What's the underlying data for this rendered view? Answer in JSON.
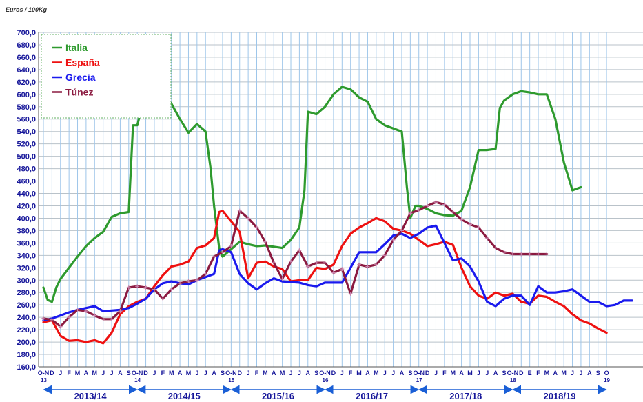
{
  "unit_label": "Euros / 100Kg",
  "chart_data": {
    "type": "line",
    "title": "",
    "ylabel": "Euros / 100Kg",
    "ylim": [
      160,
      700
    ],
    "grid": true,
    "legend_position": "top-left",
    "yticks": [
      "160,0",
      "180,0",
      "200,0",
      "220,0",
      "240,0",
      "260,0",
      "280,0",
      "300,0",
      "320,0",
      "340,0",
      "360,0",
      "380,0",
      "400,0",
      "420,0",
      "440,0",
      "460,0",
      "480,0",
      "500,0",
      "520,0",
      "540,0",
      "560,0",
      "580,0",
      "600,0",
      "620,0",
      "640,0",
      "660,0",
      "680,0",
      "700,0"
    ],
    "month_labels": [
      "O-N",
      "D",
      "J",
      "F",
      "M",
      "A",
      "M",
      "J",
      "J",
      "A",
      "S",
      "O-N",
      "D",
      "J",
      "F",
      "M",
      "A",
      "M",
      "J",
      "J",
      "A",
      "S",
      "O-N",
      "D",
      "J",
      "F",
      "M",
      "A",
      "M",
      "J",
      "J",
      "A",
      "S",
      "O-N",
      "D",
      "J",
      "F",
      "M",
      "A",
      "M",
      "J",
      "J",
      "A",
      "S",
      "O-N",
      "D",
      "J",
      "F",
      "M",
      "A",
      "M",
      "J",
      "J",
      "A",
      "S",
      "O-N",
      "D",
      "E",
      "F",
      "M",
      "A",
      "M",
      "J",
      "J",
      "A",
      "S",
      "O"
    ],
    "year_markers": [
      {
        "label": "13",
        "index": 0
      },
      {
        "label": "14",
        "index": 11
      },
      {
        "label": "15",
        "index": 22
      },
      {
        "label": "16",
        "index": 33
      },
      {
        "label": "17",
        "index": 44
      },
      {
        "label": "18",
        "index": 55
      },
      {
        "label": "19",
        "index": 66
      }
    ],
    "seasons": [
      {
        "label": "2013/14",
        "start": 0,
        "end": 11
      },
      {
        "label": "2014/15",
        "start": 11,
        "end": 22
      },
      {
        "label": "2015/16",
        "start": 22,
        "end": 33
      },
      {
        "label": "2016/17",
        "start": 33,
        "end": 44
      },
      {
        "label": "2017/18",
        "start": 44,
        "end": 55
      },
      {
        "label": "2018/19",
        "start": 55,
        "end": 66
      }
    ],
    "series": [
      {
        "name": "Italia",
        "color": "#2e9a2e",
        "markers": false,
        "points": [
          [
            0,
            288
          ],
          [
            0.5,
            268
          ],
          [
            1,
            265
          ],
          [
            1.5,
            288
          ],
          [
            2,
            302
          ],
          [
            3,
            320
          ],
          [
            4,
            338
          ],
          [
            5,
            355
          ],
          [
            6,
            368
          ],
          [
            7,
            378
          ],
          [
            8,
            402
          ],
          [
            9,
            408
          ],
          [
            10,
            410
          ],
          [
            10.5,
            550
          ],
          [
            11,
            550
          ],
          [
            11.5,
            578
          ],
          [
            12,
            598
          ],
          [
            13,
            603
          ],
          [
            14,
            598
          ],
          [
            15,
            585
          ],
          [
            16,
            560
          ],
          [
            17,
            538
          ],
          [
            18,
            552
          ],
          [
            19,
            540
          ],
          [
            19.6,
            480
          ],
          [
            20,
            420
          ],
          [
            20.6,
            352
          ],
          [
            21,
            338
          ],
          [
            22,
            350
          ],
          [
            23,
            362
          ],
          [
            24,
            358
          ],
          [
            25,
            355
          ],
          [
            26,
            356
          ],
          [
            27,
            354
          ],
          [
            28,
            352
          ],
          [
            29,
            365
          ],
          [
            30,
            385
          ],
          [
            30.6,
            445
          ],
          [
            31,
            572
          ],
          [
            32,
            568
          ],
          [
            33,
            580
          ],
          [
            34,
            600
          ],
          [
            35,
            612
          ],
          [
            36,
            608
          ],
          [
            37,
            595
          ],
          [
            38,
            588
          ],
          [
            39,
            560
          ],
          [
            40,
            550
          ],
          [
            41,
            545
          ],
          [
            42,
            540
          ],
          [
            42.6,
            450
          ],
          [
            43,
            400
          ],
          [
            43.6,
            420
          ],
          [
            44,
            420
          ],
          [
            45,
            415
          ],
          [
            46,
            408
          ],
          [
            47,
            405
          ],
          [
            48,
            404
          ],
          [
            49,
            412
          ],
          [
            50,
            450
          ],
          [
            51,
            510
          ],
          [
            52,
            510
          ],
          [
            53,
            512
          ],
          [
            53.5,
            578
          ],
          [
            54,
            590
          ],
          [
            55,
            600
          ],
          [
            56,
            605
          ],
          [
            57,
            603
          ],
          [
            58,
            600
          ],
          [
            59,
            600
          ],
          [
            60,
            560
          ],
          [
            61,
            490
          ],
          [
            62,
            445
          ],
          [
            63,
            450
          ]
        ]
      },
      {
        "name": "España",
        "color": "#ee1111",
        "markers": false,
        "points": [
          [
            0,
            232
          ],
          [
            1,
            235
          ],
          [
            2,
            210
          ],
          [
            3,
            202
          ],
          [
            4,
            203
          ],
          [
            5,
            200
          ],
          [
            6,
            203
          ],
          [
            7,
            198
          ],
          [
            8,
            215
          ],
          [
            9,
            245
          ],
          [
            10,
            258
          ],
          [
            11,
            265
          ],
          [
            12,
            270
          ],
          [
            13,
            290
          ],
          [
            14,
            308
          ],
          [
            15,
            322
          ],
          [
            16,
            325
          ],
          [
            17,
            330
          ],
          [
            18,
            352
          ],
          [
            19,
            356
          ],
          [
            20,
            368
          ],
          [
            20.6,
            410
          ],
          [
            21,
            412
          ],
          [
            22,
            395
          ],
          [
            23,
            378
          ],
          [
            24,
            303
          ],
          [
            25,
            328
          ],
          [
            26,
            330
          ],
          [
            27,
            322
          ],
          [
            28,
            318
          ],
          [
            29,
            298
          ],
          [
            30,
            300
          ],
          [
            31,
            300
          ],
          [
            32,
            320
          ],
          [
            33,
            318
          ],
          [
            34,
            325
          ],
          [
            35,
            355
          ],
          [
            36,
            375
          ],
          [
            37,
            385
          ],
          [
            38,
            392
          ],
          [
            39,
            400
          ],
          [
            40,
            395
          ],
          [
            41,
            383
          ],
          [
            42,
            380
          ],
          [
            43,
            375
          ],
          [
            44,
            365
          ],
          [
            45,
            355
          ],
          [
            46,
            358
          ],
          [
            47,
            362
          ],
          [
            48,
            357
          ],
          [
            49,
            320
          ],
          [
            50,
            290
          ],
          [
            51,
            275
          ],
          [
            52,
            270
          ],
          [
            53,
            280
          ],
          [
            54,
            275
          ],
          [
            55,
            278
          ],
          [
            56,
            265
          ],
          [
            57,
            262
          ],
          [
            58,
            275
          ],
          [
            59,
            273
          ],
          [
            60,
            265
          ],
          [
            61,
            258
          ],
          [
            62,
            245
          ],
          [
            63,
            235
          ],
          [
            64,
            230
          ],
          [
            65,
            222
          ],
          [
            66,
            215
          ]
        ]
      },
      {
        "name": "Grecia",
        "color": "#1a1aee",
        "markers": false,
        "points": [
          [
            0,
            235
          ],
          [
            1,
            238
          ],
          [
            2,
            243
          ],
          [
            3,
            248
          ],
          [
            4,
            252
          ],
          [
            5,
            255
          ],
          [
            6,
            258
          ],
          [
            7,
            250
          ],
          [
            8,
            251
          ],
          [
            9,
            252
          ],
          [
            10,
            255
          ],
          [
            11,
            262
          ],
          [
            12,
            270
          ],
          [
            13,
            285
          ],
          [
            14,
            295
          ],
          [
            15,
            298
          ],
          [
            16,
            295
          ],
          [
            17,
            293
          ],
          [
            18,
            300
          ],
          [
            19,
            305
          ],
          [
            20,
            310
          ],
          [
            20.6,
            348
          ],
          [
            21,
            350
          ],
          [
            22,
            345
          ],
          [
            23,
            310
          ],
          [
            24,
            295
          ],
          [
            25,
            285
          ],
          [
            26,
            295
          ],
          [
            27,
            303
          ],
          [
            28,
            298
          ],
          [
            29,
            297
          ],
          [
            30,
            296
          ],
          [
            31,
            292
          ],
          [
            32,
            290
          ],
          [
            33,
            296
          ],
          [
            34,
            296
          ],
          [
            35,
            296
          ],
          [
            36,
            320
          ],
          [
            37,
            345
          ],
          [
            38,
            345
          ],
          [
            39,
            345
          ],
          [
            40,
            358
          ],
          [
            41,
            372
          ],
          [
            42,
            375
          ],
          [
            43,
            368
          ],
          [
            44,
            375
          ],
          [
            45,
            385
          ],
          [
            46,
            388
          ],
          [
            47,
            360
          ],
          [
            48,
            332
          ],
          [
            49,
            335
          ],
          [
            50,
            322
          ],
          [
            51,
            298
          ],
          [
            52,
            265
          ],
          [
            53,
            258
          ],
          [
            54,
            270
          ],
          [
            55,
            275
          ],
          [
            56,
            275
          ],
          [
            57,
            260
          ],
          [
            58,
            290
          ],
          [
            59,
            280
          ],
          [
            60,
            280
          ],
          [
            61,
            282
          ],
          [
            62,
            285
          ],
          [
            63,
            275
          ],
          [
            64,
            265
          ],
          [
            65,
            265
          ],
          [
            66,
            258
          ],
          [
            67,
            260
          ],
          [
            68,
            267
          ],
          [
            69,
            267
          ]
        ]
      },
      {
        "name": "Túnez",
        "color": "#8b1a40",
        "markers": true,
        "points": [
          [
            0,
            238
          ],
          [
            1,
            236
          ],
          [
            2,
            225
          ],
          [
            3,
            240
          ],
          [
            4,
            252
          ],
          [
            5,
            250
          ],
          [
            6,
            243
          ],
          [
            7,
            237
          ],
          [
            8,
            237
          ],
          [
            9,
            250
          ],
          [
            10,
            288
          ],
          [
            11,
            290
          ],
          [
            12,
            288
          ],
          [
            13,
            285
          ],
          [
            14,
            270
          ],
          [
            15,
            285
          ],
          [
            16,
            295
          ],
          [
            17,
            298
          ],
          [
            18,
            300
          ],
          [
            19,
            310
          ],
          [
            20,
            338
          ],
          [
            21,
            345
          ],
          [
            22,
            355
          ],
          [
            23,
            412
          ],
          [
            24,
            400
          ],
          [
            25,
            385
          ],
          [
            26,
            362
          ],
          [
            27,
            328
          ],
          [
            28,
            302
          ],
          [
            29,
            330
          ],
          [
            30,
            348
          ],
          [
            31,
            322
          ],
          [
            32,
            328
          ],
          [
            33,
            328
          ],
          [
            34,
            312
          ],
          [
            35,
            318
          ],
          [
            36,
            278
          ],
          [
            37,
            325
          ],
          [
            38,
            322
          ],
          [
            39,
            325
          ],
          [
            40,
            340
          ],
          [
            41,
            365
          ],
          [
            42,
            380
          ],
          [
            43,
            408
          ],
          [
            44,
            413
          ],
          [
            45,
            420
          ],
          [
            46,
            426
          ],
          [
            47,
            422
          ],
          [
            48,
            410
          ],
          [
            49,
            398
          ],
          [
            50,
            390
          ],
          [
            51,
            385
          ],
          [
            52,
            368
          ],
          [
            53,
            352
          ],
          [
            54,
            345
          ],
          [
            55,
            342
          ],
          [
            56,
            342
          ],
          [
            57,
            342
          ],
          [
            58,
            342
          ],
          [
            59,
            342
          ]
        ]
      }
    ]
  }
}
